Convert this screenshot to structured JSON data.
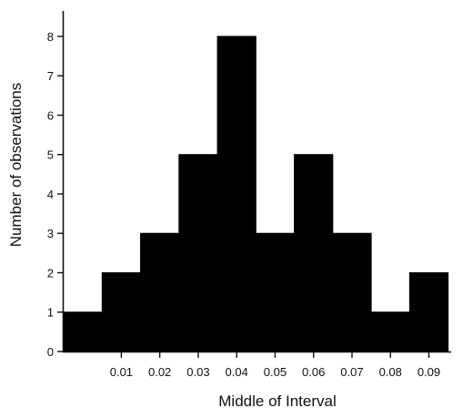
{
  "chart_data": {
    "type": "bar",
    "title": "",
    "xlabel": "Middle of Interval",
    "ylabel": "Number of observations",
    "x_tick_labels": [
      "0.01",
      "0.02",
      "0.03",
      "0.04",
      "0.05",
      "0.06",
      "0.07",
      "0.08",
      "0.09"
    ],
    "x_ticks": [
      0.01,
      0.02,
      0.03,
      0.04,
      0.05,
      0.06,
      0.07,
      0.08,
      0.09
    ],
    "bin_centers": [
      0.0,
      0.01,
      0.02,
      0.03,
      0.04,
      0.05,
      0.06,
      0.07,
      0.08,
      0.09
    ],
    "bin_width": 0.01,
    "values": [
      1,
      2,
      3,
      5,
      8,
      3,
      5,
      3,
      1,
      2
    ],
    "y_ticks": [
      0,
      1,
      2,
      3,
      4,
      5,
      6,
      7,
      8
    ],
    "y_tick_labels": [
      "0",
      "1",
      "2",
      "3",
      "4",
      "5",
      "6",
      "7",
      "8"
    ],
    "xlim": [
      -0.005,
      0.0958
    ],
    "ylim": [
      0,
      8.6
    ],
    "grid": false,
    "bar_color": "#000000",
    "axis_color": "#111111"
  }
}
